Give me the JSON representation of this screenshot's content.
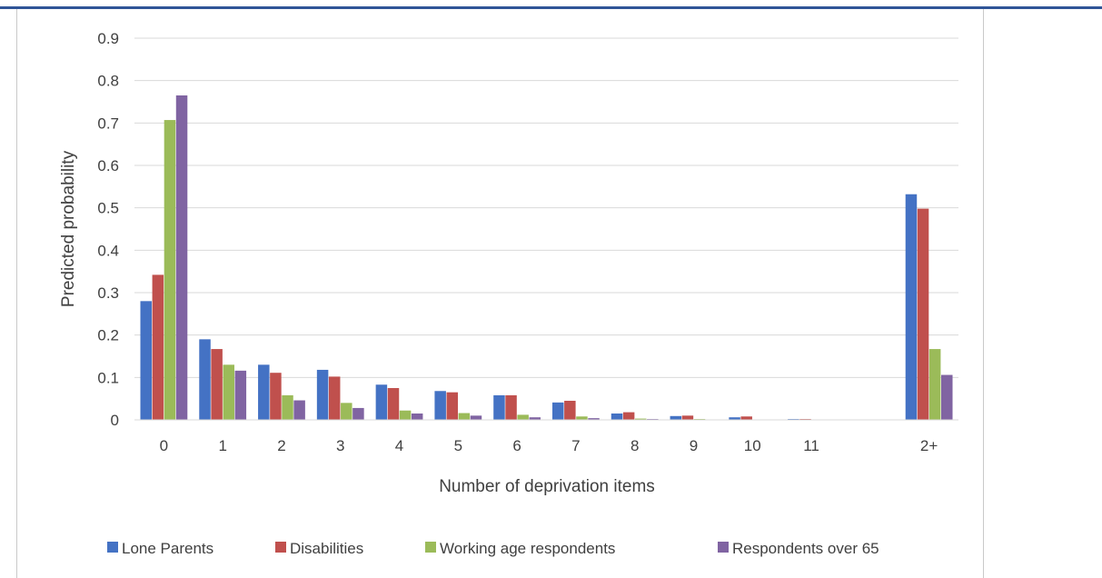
{
  "chart_data": {
    "type": "bar",
    "title": "",
    "xlabel": "Number of deprivation items",
    "ylabel": "Predicted probability",
    "ylim": [
      0,
      0.9
    ],
    "ytick_labels": [
      "0",
      "0.1",
      "0.2",
      "0.3",
      "0.4",
      "0.5",
      "0.6",
      "0.7",
      "0.8",
      "0.9"
    ],
    "categories": [
      "0",
      "1",
      "2",
      "3",
      "4",
      "5",
      "6",
      "7",
      "8",
      "9",
      "10",
      "11",
      "",
      "2+"
    ],
    "grid": true,
    "legend_position": "bottom",
    "series": [
      {
        "name": "Lone Parents",
        "color": "#4472c4",
        "values": [
          0.28,
          0.19,
          0.13,
          0.118,
          0.083,
          0.068,
          0.058,
          0.041,
          0.015,
          0.009,
          0.006,
          0.002,
          null,
          0.532
        ]
      },
      {
        "name": "Disabilities",
        "color": "#c0504d",
        "values": [
          0.342,
          0.167,
          0.111,
          0.102,
          0.075,
          0.065,
          0.058,
          0.045,
          0.018,
          0.01,
          0.008,
          0.002,
          null,
          0.498
        ]
      },
      {
        "name": "Working age respondents",
        "color": "#9bbb59",
        "values": [
          0.707,
          0.13,
          0.058,
          0.04,
          0.022,
          0.016,
          0.012,
          0.008,
          0.003,
          0.002,
          0.001,
          0.001,
          null,
          0.167
        ]
      },
      {
        "name": "Respondents over 65",
        "color": "#8064a2",
        "values": [
          0.765,
          0.116,
          0.046,
          0.028,
          0.015,
          0.01,
          0.006,
          0.004,
          0.002,
          0.001,
          0.0005,
          0.0003,
          null,
          0.106
        ]
      }
    ]
  }
}
